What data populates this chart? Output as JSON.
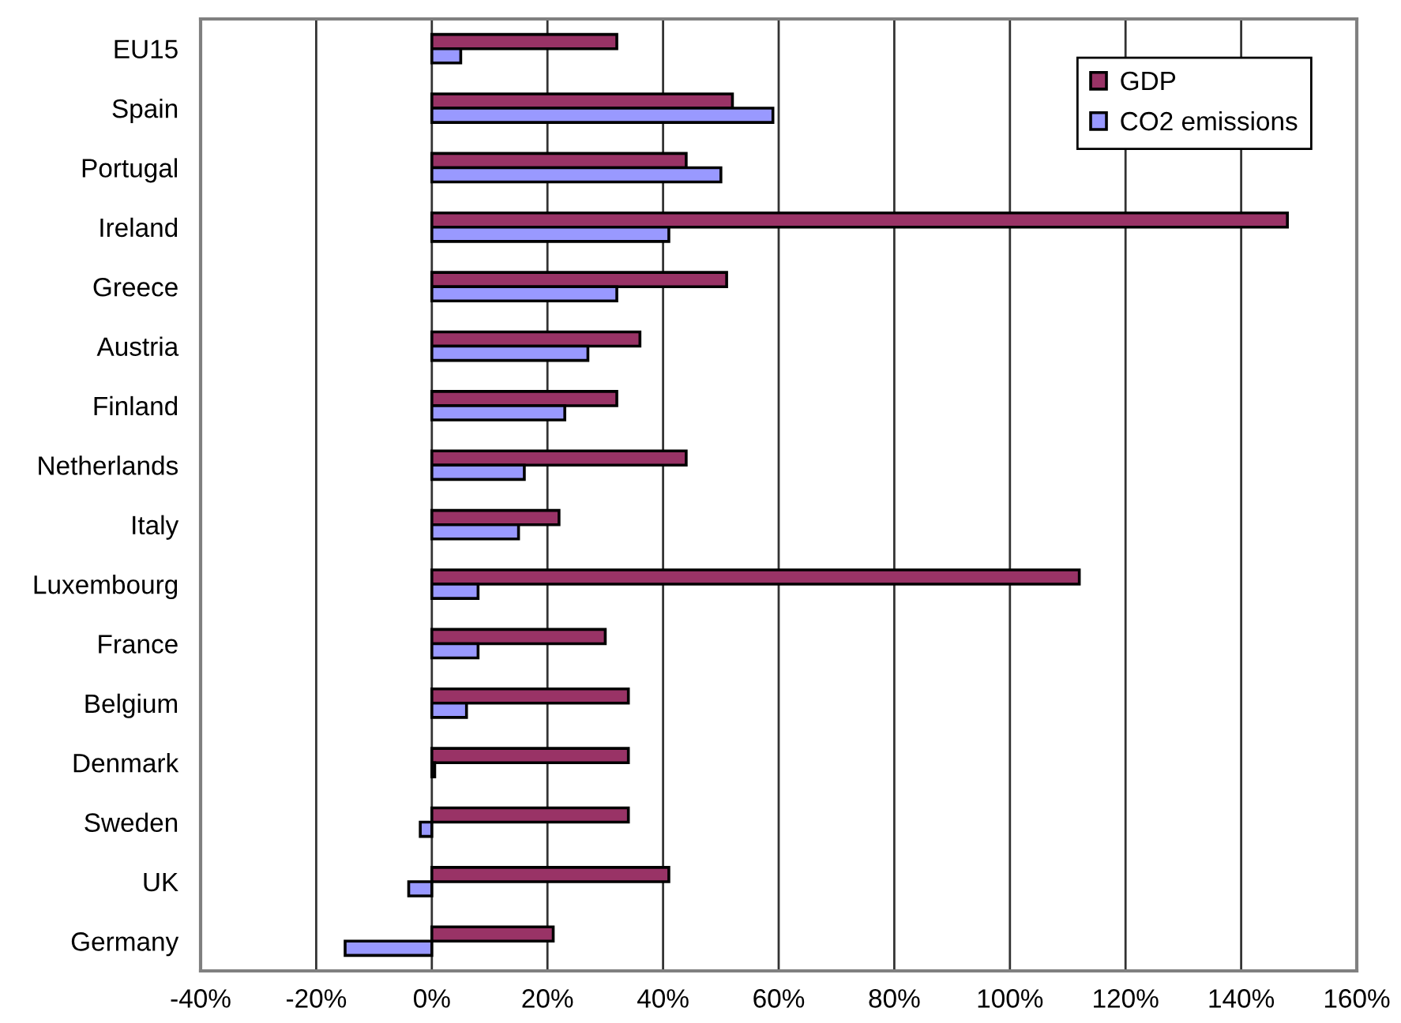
{
  "chart_data": {
    "type": "bar",
    "orientation": "horizontal",
    "categories": [
      "EU15",
      "Spain",
      "Portugal",
      "Ireland",
      "Greece",
      "Austria",
      "Finland",
      "Netherlands",
      "Italy",
      "Luxembourg",
      "France",
      "Belgium",
      "Denmark",
      "Sweden",
      "UK",
      "Germany"
    ],
    "series": [
      {
        "name": "GDP",
        "color": "#993366",
        "values": [
          32,
          52,
          44,
          148,
          51,
          36,
          32,
          44,
          22,
          112,
          30,
          34,
          34,
          34,
          41,
          21
        ]
      },
      {
        "name": "CO2 emissions",
        "color": "#9999ff",
        "values": [
          5,
          59,
          50,
          41,
          32,
          27,
          23,
          16,
          15,
          8,
          8,
          6,
          0.5,
          -2,
          -4,
          -15
        ]
      }
    ],
    "xlim": [
      -40,
      160
    ],
    "xticks": [
      {
        "value": -40,
        "label": "-40%"
      },
      {
        "value": -20,
        "label": "-20%"
      },
      {
        "value": 0,
        "label": "0%"
      },
      {
        "value": 20,
        "label": "20%"
      },
      {
        "value": 40,
        "label": "40%"
      },
      {
        "value": 60,
        "label": "60%"
      },
      {
        "value": 80,
        "label": "80%"
      },
      {
        "value": 100,
        "label": "100%"
      },
      {
        "value": 120,
        "label": "120%"
      },
      {
        "value": 140,
        "label": "140%"
      },
      {
        "value": 160,
        "label": "160%"
      }
    ],
    "grid": "x",
    "legend": "top right"
  }
}
